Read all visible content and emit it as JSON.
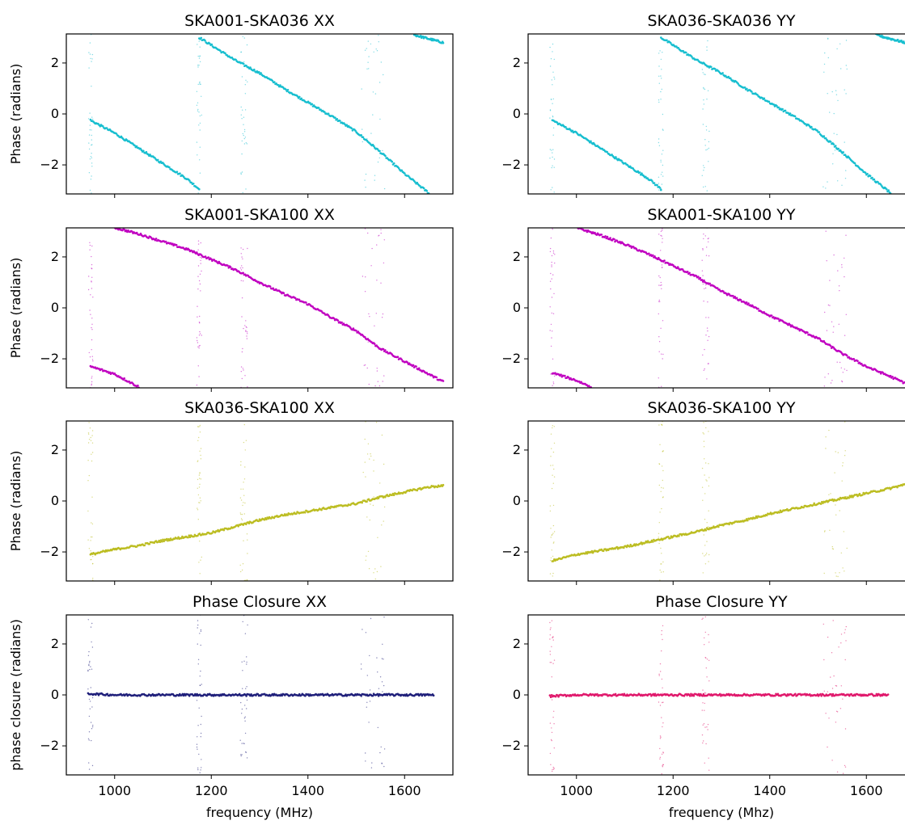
{
  "chart_data": [
    {
      "type": "scatter",
      "title": "SKA001-SKA036 XX",
      "xlabel": "",
      "ylabel": "Phase (radians)",
      "xlim": [
        900,
        1700
      ],
      "ylim": [
        -3.14,
        3.14
      ],
      "xticks": [
        1000,
        1200,
        1400,
        1600
      ],
      "yticks": [
        -2,
        0,
        2
      ],
      "color": "#17becf",
      "series": [
        {
          "x": [
            950,
            1000,
            1050,
            1100,
            1150,
            1175
          ],
          "y": [
            -0.25,
            -0.75,
            -1.35,
            -1.95,
            -2.55,
            -2.95
          ]
        },
        {
          "x": [
            1175,
            1200,
            1250,
            1300,
            1350,
            1400,
            1450,
            1500,
            1550,
            1600,
            1650
          ],
          "y": [
            3.0,
            2.7,
            2.1,
            1.6,
            1.0,
            0.45,
            -0.1,
            -0.7,
            -1.5,
            -2.35,
            -3.1
          ]
        },
        {
          "x": [
            1620,
            1680
          ],
          "y": [
            3.1,
            2.8
          ]
        }
      ]
    },
    {
      "type": "scatter",
      "title": "SKA036-SKA036 YY",
      "xlabel": "",
      "ylabel": "",
      "xlim": [
        900,
        1700
      ],
      "ylim": [
        -3.14,
        3.14
      ],
      "xticks": [
        1000,
        1200,
        1400,
        1600
      ],
      "yticks": [
        -2,
        0,
        2
      ],
      "color": "#17becf",
      "series": [
        {
          "x": [
            950,
            1000,
            1050,
            1100,
            1150,
            1175
          ],
          "y": [
            -0.25,
            -0.75,
            -1.35,
            -1.95,
            -2.55,
            -2.95
          ]
        },
        {
          "x": [
            1175,
            1200,
            1250,
            1300,
            1350,
            1400,
            1450,
            1500,
            1550,
            1600,
            1650
          ],
          "y": [
            3.0,
            2.7,
            2.1,
            1.6,
            1.0,
            0.45,
            -0.1,
            -0.7,
            -1.5,
            -2.35,
            -3.1
          ]
        },
        {
          "x": [
            1620,
            1680
          ],
          "y": [
            3.1,
            2.8
          ]
        }
      ]
    },
    {
      "type": "scatter",
      "title": "SKA001-SKA100 XX",
      "xlabel": "",
      "ylabel": "Phase (radians)",
      "xlim": [
        900,
        1700
      ],
      "ylim": [
        -3.14,
        3.14
      ],
      "xticks": [
        1000,
        1200,
        1400,
        1600
      ],
      "yticks": [
        -2,
        0,
        2
      ],
      "color": "#c000c0",
      "series": [
        {
          "x": [
            1000,
            1050,
            1100,
            1150,
            1200,
            1250,
            1300,
            1350,
            1400,
            1450,
            1500,
            1550,
            1600,
            1650,
            1680
          ],
          "y": [
            3.15,
            2.9,
            2.6,
            2.3,
            1.9,
            1.5,
            1.0,
            0.55,
            0.15,
            -0.4,
            -0.9,
            -1.6,
            -2.1,
            -2.6,
            -2.9
          ]
        },
        {
          "x": [
            950,
            1000,
            1050
          ],
          "y": [
            -2.3,
            -2.6,
            -3.1
          ]
        }
      ]
    },
    {
      "type": "scatter",
      "title": "SKA001-SKA100 YY",
      "xlabel": "",
      "ylabel": "",
      "xlim": [
        900,
        1700
      ],
      "ylim": [
        -3.14,
        3.14
      ],
      "xticks": [
        1000,
        1200,
        1400,
        1600
      ],
      "yticks": [
        -2,
        0,
        2
      ],
      "color": "#c000c0",
      "series": [
        {
          "x": [
            1000,
            1050,
            1100,
            1150,
            1200,
            1250,
            1300,
            1350,
            1400,
            1450,
            1500,
            1550,
            1600,
            1650,
            1680
          ],
          "y": [
            3.15,
            2.85,
            2.5,
            2.1,
            1.65,
            1.2,
            0.65,
            0.2,
            -0.3,
            -0.75,
            -1.2,
            -1.8,
            -2.3,
            -2.7,
            -2.95
          ]
        },
        {
          "x": [
            950,
            1000,
            1030
          ],
          "y": [
            -2.55,
            -2.85,
            -3.1
          ]
        }
      ]
    },
    {
      "type": "scatter",
      "title": "SKA036-SKA100 XX",
      "xlabel": "",
      "ylabel": "Phase (radians)",
      "xlim": [
        900,
        1700
      ],
      "ylim": [
        -3.14,
        3.14
      ],
      "xticks": [
        1000,
        1200,
        1400,
        1600
      ],
      "yticks": [
        -2,
        0,
        2
      ],
      "color": "#bcbd22",
      "series": [
        {
          "x": [
            950,
            1000,
            1050,
            1100,
            1150,
            1200,
            1250,
            1300,
            1350,
            1400,
            1450,
            1500,
            1550,
            1600,
            1650,
            1680
          ],
          "y": [
            -2.1,
            -1.9,
            -1.75,
            -1.55,
            -1.4,
            -1.25,
            -1.0,
            -0.75,
            -0.55,
            -0.4,
            -0.25,
            -0.1,
            0.15,
            0.35,
            0.55,
            0.6
          ]
        }
      ]
    },
    {
      "type": "scatter",
      "title": "SKA036-SKA100 YY",
      "xlabel": "",
      "ylabel": "",
      "xlim": [
        900,
        1700
      ],
      "ylim": [
        -3.14,
        3.14
      ],
      "xticks": [
        1000,
        1200,
        1400,
        1600
      ],
      "yticks": [
        -2,
        0,
        2
      ],
      "color": "#bcbd22",
      "series": [
        {
          "x": [
            950,
            1000,
            1050,
            1100,
            1150,
            1200,
            1250,
            1300,
            1350,
            1400,
            1450,
            1500,
            1550,
            1600,
            1650,
            1680
          ],
          "y": [
            -2.35,
            -2.1,
            -1.95,
            -1.8,
            -1.6,
            -1.4,
            -1.2,
            -0.95,
            -0.75,
            -0.5,
            -0.3,
            -0.1,
            0.1,
            0.3,
            0.5,
            0.65
          ]
        }
      ]
    },
    {
      "type": "scatter",
      "title": "Phase Closure XX",
      "xlabel": "frequency (MHz)",
      "ylabel": "phase closure (radians)",
      "xlim": [
        900,
        1700
      ],
      "ylim": [
        -3.14,
        3.14
      ],
      "xticks": [
        1000,
        1200,
        1400,
        1600
      ],
      "yticks": [
        -2,
        0,
        2
      ],
      "color": "#1f1f7a",
      "series": [
        {
          "x": [
            945,
            1000,
            1100,
            1200,
            1300,
            1400,
            1500,
            1600,
            1660
          ],
          "y": [
            0.05,
            0.0,
            0.0,
            0.0,
            0.0,
            0.0,
            0.0,
            0.0,
            0.0
          ]
        }
      ]
    },
    {
      "type": "scatter",
      "title": "Phase Closure YY",
      "xlabel": "frequency (Mhz)",
      "ylabel": "",
      "xlim": [
        900,
        1700
      ],
      "ylim": [
        -3.14,
        3.14
      ],
      "xticks": [
        1000,
        1200,
        1400,
        1600
      ],
      "yticks": [
        -2,
        0,
        2
      ],
      "color": "#e0176b",
      "series": [
        {
          "x": [
            945,
            1000,
            1100,
            1200,
            1300,
            1400,
            1500,
            1600,
            1645
          ],
          "y": [
            -0.05,
            0.0,
            0.0,
            0.0,
            0.0,
            0.0,
            0.0,
            0.0,
            0.0
          ]
        }
      ]
    }
  ]
}
